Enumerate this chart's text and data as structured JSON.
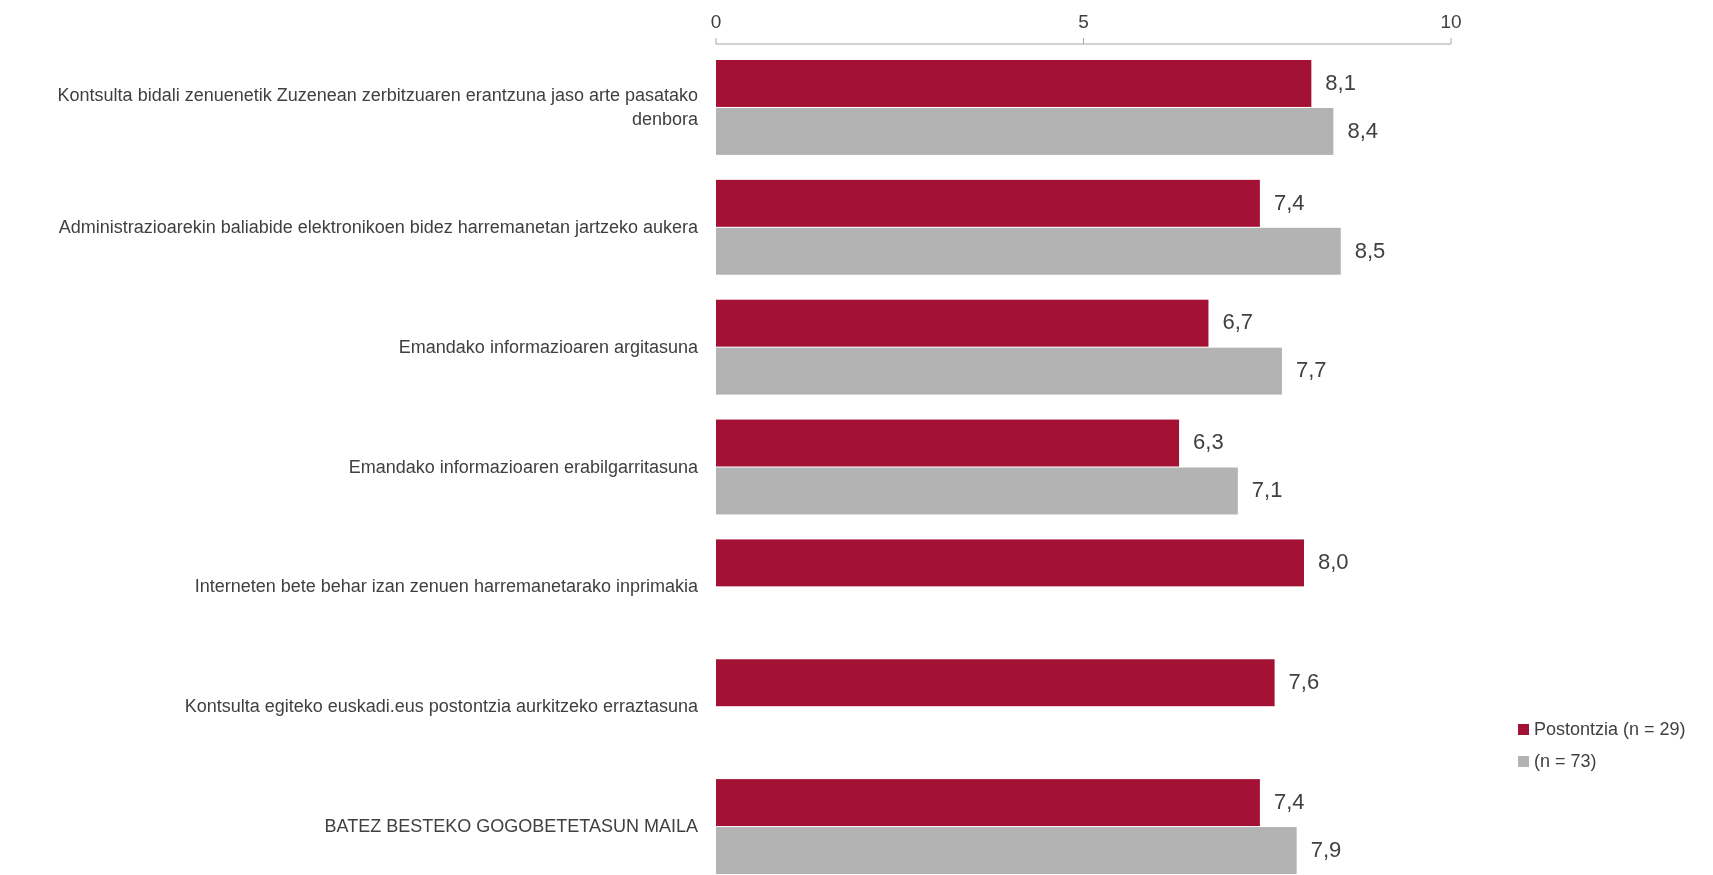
{
  "chart_data": {
    "type": "bar",
    "orientation": "horizontal",
    "categories": [
      "Kontsulta bidali zenuenetik Zuzenean zerbitzuaren erantzuna jaso arte pasatako denbora",
      "Administrazioarekin baliabide elektronikoen bidez harremanetan jartzeko aukera",
      "Emandako informazioaren argitasuna",
      "Emandako informazioaren erabilgarritasuna",
      "Interneten bete behar izan zenuen harremanetarako inprimakia",
      "Kontsulta egiteko euskadi.eus postontzia aurkitzeko erraztasuna",
      "BATEZ BESTEKO GOGOBETETASUN MAILA"
    ],
    "series": [
      {
        "name": "Postontzia (n = 29)",
        "color": "#a31235",
        "values": [
          8.1,
          7.4,
          6.7,
          6.3,
          8.0,
          7.6,
          7.4
        ],
        "value_labels": [
          "8,1",
          "7,4",
          "6,7",
          "6,3",
          "8,0",
          "7,6",
          "7,4"
        ]
      },
      {
        "name": "(n = 73)",
        "color": "#b3b3b3",
        "values": [
          8.4,
          8.5,
          7.7,
          7.1,
          null,
          null,
          7.9
        ],
        "value_labels": [
          "8,4",
          "8,5",
          "7,7",
          "7,1",
          null,
          null,
          "7,9"
        ]
      }
    ],
    "xlim": [
      0,
      10
    ],
    "xticks": [
      0,
      5,
      10
    ],
    "grid": false,
    "legend": "right"
  }
}
